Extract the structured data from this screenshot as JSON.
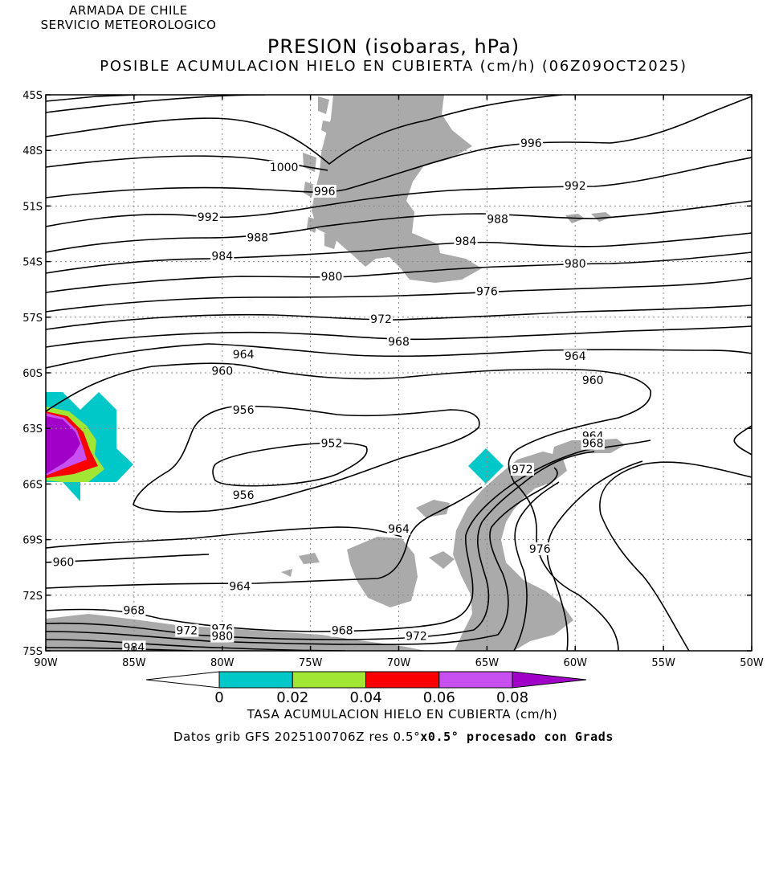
{
  "header": {
    "org_line1": "ARMADA DE CHILE",
    "org_line2": "SERVICIO METEOROLOGICO",
    "title": "PRESION (isobaras, hPa)",
    "subtitle": "POSIBLE ACUMULACION HIELO EN CUBIERTA (cm/h) (06Z09OCT2025)"
  },
  "map": {
    "lat_labels": [
      "45S",
      "48S",
      "51S",
      "54S",
      "57S",
      "60S",
      "63S",
      "66S",
      "69S",
      "72S",
      "75S"
    ],
    "lon_labels": [
      "90W",
      "85W",
      "80W",
      "75W",
      "70W",
      "65W",
      "60W",
      "55W",
      "50W"
    ],
    "lat_values": [
      -45,
      -48,
      -51,
      -54,
      -57,
      -60,
      -63,
      -66,
      -69,
      -72,
      -75
    ],
    "lon_values": [
      -90,
      -85,
      -80,
      -75,
      -70,
      -65,
      -60,
      -55,
      -50
    ],
    "land_color": "#aaaaaa",
    "isobar_color": "#000000",
    "isobar_labels": [
      {
        "text": "996",
        "lon": -62.5,
        "lat": -47.6
      },
      {
        "text": "1000",
        "lon": -76.5,
        "lat": -48.9
      },
      {
        "text": "996",
        "lon": -74.2,
        "lat": -50.2
      },
      {
        "text": "992",
        "lon": -60.0,
        "lat": -49.9
      },
      {
        "text": "992",
        "lon": -80.8,
        "lat": -51.6
      },
      {
        "text": "988",
        "lon": -64.4,
        "lat": -51.7
      },
      {
        "text": "988",
        "lon": -78.0,
        "lat": -52.7
      },
      {
        "text": "984",
        "lon": -66.2,
        "lat": -52.9
      },
      {
        "text": "984",
        "lon": -80.0,
        "lat": -53.7
      },
      {
        "text": "980",
        "lon": -60.0,
        "lat": -54.1
      },
      {
        "text": "980",
        "lon": -73.8,
        "lat": -54.8
      },
      {
        "text": "976",
        "lon": -65.0,
        "lat": -55.6
      },
      {
        "text": "972",
        "lon": -71.0,
        "lat": -57.1
      },
      {
        "text": "968",
        "lon": -70.0,
        "lat": -58.3
      },
      {
        "text": "964",
        "lon": -78.8,
        "lat": -59.0
      },
      {
        "text": "964",
        "lon": -60.0,
        "lat": -59.1
      },
      {
        "text": "960",
        "lon": -80.0,
        "lat": -59.9
      },
      {
        "text": "960",
        "lon": -59.0,
        "lat": -60.4
      },
      {
        "text": "956",
        "lon": -78.8,
        "lat": -62.0
      },
      {
        "text": "952",
        "lon": -73.8,
        "lat": -63.8
      },
      {
        "text": "964",
        "lon": -59.0,
        "lat": -63.4
      },
      {
        "text": "968",
        "lon": -59.0,
        "lat": -63.8
      },
      {
        "text": "972",
        "lon": -63.0,
        "lat": -65.2
      },
      {
        "text": "956",
        "lon": -78.8,
        "lat": -66.6
      },
      {
        "text": "964",
        "lon": -70.0,
        "lat": -68.4
      },
      {
        "text": "976",
        "lon": -62.0,
        "lat": -69.5
      },
      {
        "text": "960",
        "lon": -89.0,
        "lat": -70.2
      },
      {
        "text": "964",
        "lon": -79.0,
        "lat": -71.5
      },
      {
        "text": "968",
        "lon": -85.0,
        "lat": -72.8
      },
      {
        "text": "972",
        "lon": -82.0,
        "lat": -73.9
      },
      {
        "text": "976",
        "lon": -80.0,
        "lat": -73.8
      },
      {
        "text": "980",
        "lon": -80.0,
        "lat": -74.2
      },
      {
        "text": "968",
        "lon": -73.2,
        "lat": -73.9
      },
      {
        "text": "972",
        "lon": -69.0,
        "lat": -74.2
      },
      {
        "text": "984",
        "lon": -85.0,
        "lat": -74.8
      }
    ]
  },
  "colorbar": {
    "tick_labels": [
      "0",
      "0.02",
      "0.04",
      "0.06",
      "0.08"
    ],
    "bins": [
      {
        "from": 0,
        "to": 0.02,
        "color": "#00c8c8"
      },
      {
        "from": 0.02,
        "to": 0.04,
        "color": "#a0e632"
      },
      {
        "from": 0.04,
        "to": 0.06,
        "color": "#fa0000"
      },
      {
        "from": 0.06,
        "to": 0.08,
        "color": "#c850f0"
      },
      {
        "from": 0.08,
        "to": null,
        "color": "#a000c8"
      }
    ],
    "title": "TASA ACUMULACION HIELO EN CUBIERTA (cm/h)"
  },
  "footer": {
    "text_plain": "Datos grib GFS 2025100706Z res 0.5°",
    "text_bold": "x0.5° procesado con Grads"
  }
}
